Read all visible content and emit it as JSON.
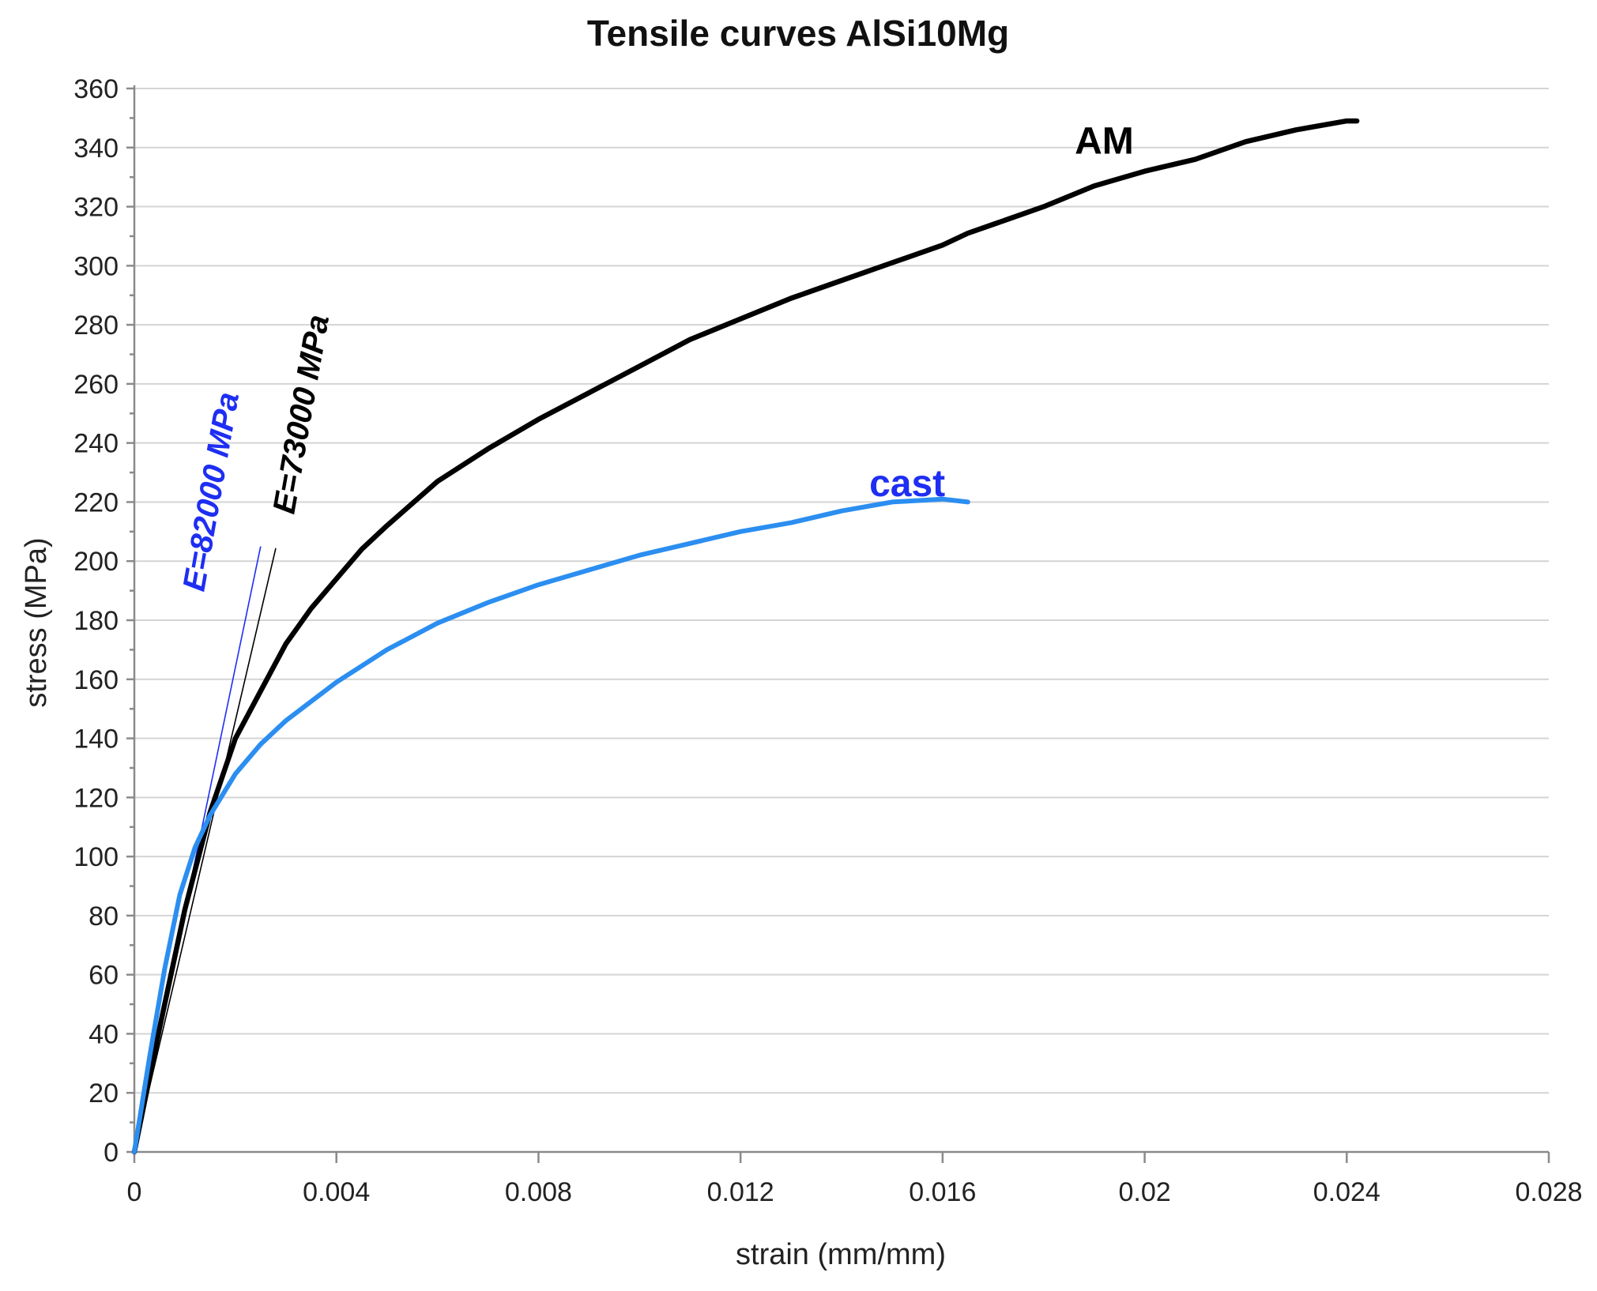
{
  "chart_data": {
    "type": "line",
    "title": "Tensile curves AlSi10Mg",
    "xlabel": "strain (mm/mm)",
    "ylabel": "stress (MPa)",
    "xlim": [
      0,
      0.028
    ],
    "ylim": [
      0,
      360
    ],
    "x_ticks": [
      "0",
      "0.004",
      "0.008",
      "0.012",
      "0.016",
      "0.02",
      "0.024",
      "0.028"
    ],
    "y_ticks": [
      "0",
      "20",
      "40",
      "60",
      "80",
      "100",
      "120",
      "140",
      "160",
      "180",
      "200",
      "220",
      "240",
      "260",
      "280",
      "300",
      "320",
      "340",
      "360"
    ],
    "grid": true,
    "series": [
      {
        "name": "AM",
        "color": "#000000",
        "x": [
          0,
          0.0005,
          0.001,
          0.0015,
          0.002,
          0.0025,
          0.003,
          0.0035,
          0.004,
          0.0045,
          0.005,
          0.006,
          0.007,
          0.008,
          0.009,
          0.01,
          0.011,
          0.012,
          0.013,
          0.014,
          0.015,
          0.016,
          0.0165,
          0.017,
          0.018,
          0.019,
          0.02,
          0.021,
          0.022,
          0.023,
          0.024,
          0.0242
        ],
        "y": [
          0,
          42,
          82,
          115,
          140,
          156,
          172,
          184,
          194,
          204,
          212,
          227,
          238,
          248,
          257,
          266,
          275,
          282,
          289,
          295,
          301,
          307,
          311,
          314,
          320,
          327,
          332,
          336,
          342,
          346,
          349,
          349
        ]
      },
      {
        "name": "cast",
        "color": "#2b8ef0",
        "x": [
          0,
          0.0003,
          0.0006,
          0.0009,
          0.0012,
          0.0015,
          0.002,
          0.0025,
          0.003,
          0.004,
          0.005,
          0.006,
          0.007,
          0.008,
          0.009,
          0.01,
          0.011,
          0.012,
          0.013,
          0.014,
          0.015,
          0.016,
          0.0165
        ],
        "y": [
          0,
          32,
          62,
          87,
          103,
          114,
          128,
          138,
          146,
          159,
          170,
          179,
          186,
          192,
          197,
          202,
          206,
          210,
          213,
          217,
          220,
          221,
          220
        ]
      }
    ],
    "reference_lines": [
      {
        "label": "E=82000 MPa",
        "modulus": 82000,
        "color": "#1e2ef2",
        "x": [
          0,
          0.0025
        ],
        "y": [
          0,
          205
        ]
      },
      {
        "label": "E=73000 MPa",
        "modulus": 73000,
        "color": "#000000",
        "x": [
          0,
          0.0028
        ],
        "y": [
          0,
          204.4
        ]
      }
    ],
    "annotations": [
      {
        "text": "AM",
        "color": "#000000",
        "x": 0.0192,
        "y": 338
      },
      {
        "text": "cast",
        "color": "#1e2ef2",
        "x": 0.0153,
        "y": 222
      }
    ]
  }
}
